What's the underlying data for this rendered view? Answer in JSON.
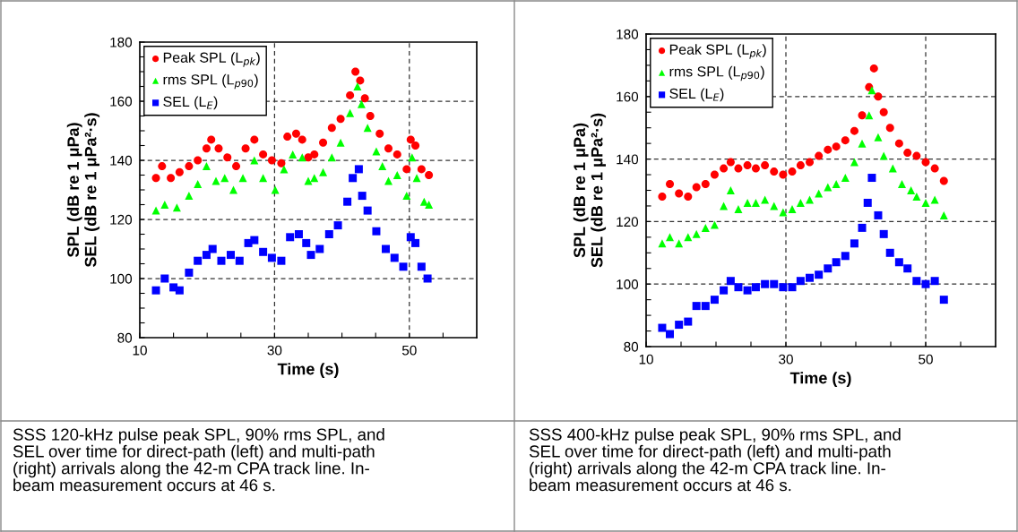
{
  "chart_data": [
    {
      "type": "scatter",
      "ylabel": "SPL (dB re 1 μPa)\nSEL (dB re 1 μPa²·s)",
      "xlabel": "Time (s)",
      "xlim": [
        10,
        60
      ],
      "xticks": [
        10,
        {
          "value": 15,
          "label": null
        },
        {
          "value": 20,
          "label": null
        },
        {
          "value": 25,
          "label": null
        },
        30,
        {
          "value": 35,
          "label": null
        },
        {
          "value": 40,
          "label": null
        },
        {
          "value": 45,
          "label": null
        },
        50,
        {
          "value": 55,
          "label": null
        }
      ],
      "ylim": [
        80,
        180
      ],
      "yticks": [
        80,
        {
          "value": 85,
          "label": null
        },
        {
          "value": 90,
          "label": null
        },
        {
          "value": 95,
          "label": null
        },
        100,
        {
          "value": 105,
          "label": null
        },
        {
          "value": 110,
          "label": null
        },
        {
          "value": 115,
          "label": null
        },
        120,
        {
          "value": 125,
          "label": null
        },
        {
          "value": 130,
          "label": null
        },
        {
          "value": 135,
          "label": null
        },
        140,
        {
          "value": 145,
          "label": null
        },
        {
          "value": 150,
          "label": null
        },
        {
          "value": 155,
          "label": null
        },
        160,
        {
          "value": 165,
          "label": null
        },
        {
          "value": 170,
          "label": null
        },
        {
          "value": 175,
          "label": null
        },
        180
      ],
      "grid": true,
      "legend": "top left",
      "annotations": [
        "SSS 120-kHz pulse peak SPL, 90% rms SPL, and\nSEL over time for direct-path (left) and multi-path\n(right) arrivals along the 42-m CPA track line. In-\nbeam measurement occurs at 46 s."
      ],
      "series": [
        {
          "name": "Peak SPL (L$_{pk}$)",
          "color": "#ff0000",
          "marker": "circle",
          "x": [
            12.4,
            13.3,
            14.6,
            15.9,
            17.3,
            18.6,
            19.9,
            20.6,
            21.7,
            23.0,
            24.3,
            25.7,
            27.0,
            28.3,
            29.6,
            31.0,
            31.9,
            33.2,
            34.1,
            35.0,
            35.9,
            37.2,
            38.5,
            39.8,
            41.2,
            42.0,
            42.7,
            43.4,
            44.2,
            45.6,
            46.9,
            48.2,
            49.6,
            50.2,
            50.9,
            51.8,
            52.9
          ],
          "values": [
            134,
            138,
            134,
            136,
            138,
            140,
            144,
            147,
            144,
            141,
            138,
            144,
            147,
            142,
            140,
            139,
            148,
            149,
            147,
            141,
            142,
            146,
            151,
            154,
            162,
            170,
            167,
            161,
            155,
            149,
            144,
            142,
            137,
            147,
            145,
            137,
            135
          ]
        },
        {
          "name": "rms SPL (L$_{p90}$)",
          "color": "#00ff00",
          "marker": "triangle",
          "x": [
            12.4,
            13.7,
            15.5,
            17.3,
            18.6,
            19.9,
            21.3,
            22.6,
            23.9,
            25.3,
            27.0,
            28.3,
            30.1,
            31.4,
            32.7,
            34.1,
            35.0,
            35.9,
            37.2,
            38.5,
            39.8,
            41.2,
            42.3,
            42.9,
            43.8,
            45.1,
            46.0,
            46.9,
            48.2,
            49.6,
            50.4,
            51.1,
            52.2,
            52.9
          ],
          "values": [
            123,
            125,
            124,
            128,
            132,
            138,
            133,
            134,
            130,
            134,
            140,
            134,
            130,
            137,
            142,
            141,
            133,
            134,
            136,
            141,
            146,
            156,
            165,
            159,
            151,
            143,
            138,
            133,
            135,
            128,
            141,
            134,
            126,
            125
          ]
        },
        {
          "name": "SEL (L$_{E}$)",
          "color": "#0000ff",
          "marker": "square",
          "x": [
            12.4,
            13.7,
            15.0,
            15.9,
            17.3,
            18.6,
            19.9,
            20.8,
            22.1,
            23.5,
            24.8,
            26.1,
            27.0,
            28.3,
            29.6,
            31.0,
            32.3,
            33.6,
            34.7,
            35.4,
            36.7,
            38.1,
            39.4,
            40.8,
            41.6,
            42.5,
            43.0,
            43.8,
            45.1,
            46.5,
            47.8,
            49.1,
            50.2,
            50.9,
            51.8,
            52.7
          ],
          "values": [
            96,
            100,
            97,
            96,
            102,
            106,
            108,
            110,
            106,
            108,
            106,
            112,
            113,
            109,
            107,
            106,
            114,
            115,
            112,
            108,
            110,
            115,
            118,
            126,
            134,
            137,
            128,
            123,
            116,
            110,
            107,
            104,
            114,
            112,
            104,
            100
          ]
        }
      ]
    },
    {
      "type": "scatter",
      "ylabel": "SPL (dB re 1 μPa)\nSEL (dB re 1 μPa²·s)",
      "xlabel": "Time (s)",
      "xlim": [
        10,
        60
      ],
      "xticks": [
        10,
        {
          "value": 15,
          "label": null
        },
        {
          "value": 20,
          "label": null
        },
        {
          "value": 25,
          "label": null
        },
        30,
        {
          "value": 35,
          "label": null
        },
        {
          "value": 40,
          "label": null
        },
        {
          "value": 45,
          "label": null
        },
        50,
        {
          "value": 55,
          "label": null
        }
      ],
      "ylim": [
        80,
        180
      ],
      "yticks": [
        80,
        {
          "value": 85,
          "label": null
        },
        {
          "value": 90,
          "label": null
        },
        {
          "value": 95,
          "label": null
        },
        100,
        {
          "value": 105,
          "label": null
        },
        {
          "value": 110,
          "label": null
        },
        {
          "value": 115,
          "label": null
        },
        120,
        {
          "value": 125,
          "label": null
        },
        {
          "value": 130,
          "label": null
        },
        {
          "value": 135,
          "label": null
        },
        140,
        {
          "value": 145,
          "label": null
        },
        {
          "value": 150,
          "label": null
        },
        {
          "value": 155,
          "label": null
        },
        160,
        {
          "value": 165,
          "label": null
        },
        {
          "value": 170,
          "label": null
        },
        {
          "value": 175,
          "label": null
        },
        180
      ],
      "grid": true,
      "legend": "top left",
      "annotations": [
        "SSS 400-kHz pulse peak SPL, 90% rms SPL, and\nSEL over time for direct-path (left) and multi-path\n(right) arrivals along the 42-m CPA track line. In-\nbeam measurement occurs at 46 s."
      ],
      "series": [
        {
          "name": "Peak SPL (L$_{pk}$)",
          "color": "#ff0000",
          "marker": "circle",
          "x": [
            12.3,
            13.4,
            14.7,
            16.0,
            17.2,
            18.5,
            19.8,
            21.1,
            22.1,
            23.2,
            24.5,
            25.7,
            27.0,
            28.3,
            29.6,
            30.9,
            32.1,
            33.4,
            34.7,
            36.0,
            37.2,
            38.5,
            39.8,
            40.9,
            41.9,
            42.6,
            43.2,
            44.0,
            44.9,
            46.2,
            47.4,
            48.7,
            50.0,
            51.3,
            52.6
          ],
          "values": [
            128,
            132,
            129,
            128,
            131,
            132,
            135,
            137,
            139,
            137,
            138,
            137,
            138,
            136,
            135,
            136,
            138,
            139,
            141,
            143,
            144,
            146,
            149,
            154,
            163,
            169,
            160,
            155,
            150,
            145,
            142,
            141,
            139,
            137,
            133
          ]
        },
        {
          "name": "rms SPL (L$_{p90}$)",
          "color": "#00ff00",
          "marker": "triangle",
          "x": [
            12.3,
            13.4,
            14.7,
            16.0,
            17.2,
            18.5,
            19.8,
            21.1,
            22.1,
            23.2,
            24.5,
            25.7,
            27.0,
            28.3,
            29.6,
            30.9,
            32.1,
            33.4,
            34.7,
            36.0,
            37.2,
            38.5,
            39.8,
            40.9,
            41.9,
            42.3,
            43.2,
            44.0,
            45.3,
            46.6,
            47.9,
            48.7,
            50.0,
            51.3,
            52.6
          ],
          "values": [
            113,
            115,
            113,
            115,
            116,
            118,
            119,
            125,
            130,
            124,
            126,
            126,
            127,
            125,
            123,
            124,
            126,
            127,
            129,
            131,
            132,
            134,
            139,
            145,
            154,
            162,
            147,
            141,
            137,
            132,
            130,
            128,
            126,
            127,
            122
          ]
        },
        {
          "name": "SEL (L$_{E}$)",
          "color": "#0000ff",
          "marker": "square",
          "x": [
            12.3,
            13.4,
            14.7,
            16.0,
            17.2,
            18.5,
            19.8,
            21.1,
            22.1,
            23.2,
            24.5,
            25.7,
            27.0,
            28.3,
            29.6,
            30.9,
            32.1,
            33.4,
            34.7,
            36.0,
            37.2,
            38.5,
            39.8,
            40.9,
            41.7,
            42.3,
            43.2,
            44.0,
            44.9,
            46.2,
            47.4,
            48.7,
            50.0,
            51.3,
            52.6
          ],
          "values": [
            86,
            84,
            87,
            88,
            93,
            93,
            95,
            98,
            101,
            99,
            98,
            99,
            100,
            100,
            99,
            99,
            101,
            102,
            103,
            105,
            107,
            109,
            113,
            118,
            126,
            134,
            122,
            116,
            110,
            107,
            105,
            101,
            100,
            101,
            95
          ]
        }
      ]
    }
  ]
}
